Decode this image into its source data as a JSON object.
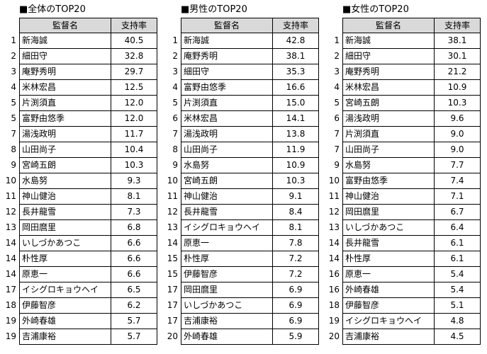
{
  "colors": {
    "header_bg": "#d9d9d9",
    "border": "#000000",
    "text": "#000000",
    "page_bg": "#ffffff"
  },
  "tables": [
    {
      "title": "■全体のTOP20",
      "columns": {
        "name": "監督名",
        "rate": "支持率"
      },
      "rows": [
        {
          "rank": "1",
          "name": "新海誠",
          "rate": "40.5"
        },
        {
          "rank": "2",
          "name": "細田守",
          "rate": "32.8"
        },
        {
          "rank": "3",
          "name": "庵野秀明",
          "rate": "29.7"
        },
        {
          "rank": "4",
          "name": "米林宏昌",
          "rate": "12.5"
        },
        {
          "rank": "5",
          "name": "片渕須直",
          "rate": "12.0"
        },
        {
          "rank": "5",
          "name": "富野由悠季",
          "rate": "12.0"
        },
        {
          "rank": "7",
          "name": "湯浅政明",
          "rate": "11.7"
        },
        {
          "rank": "8",
          "name": "山田尚子",
          "rate": "10.4"
        },
        {
          "rank": "9",
          "name": "宮崎五朗",
          "rate": "10.3"
        },
        {
          "rank": "10",
          "name": "水島努",
          "rate": "9.3"
        },
        {
          "rank": "11",
          "name": "神山健治",
          "rate": "8.1"
        },
        {
          "rank": "12",
          "name": "長井龍雪",
          "rate": "7.3"
        },
        {
          "rank": "13",
          "name": "岡田麿里",
          "rate": "6.8"
        },
        {
          "rank": "14",
          "name": "いしづかあつこ",
          "rate": "6.6"
        },
        {
          "rank": "14",
          "name": "朴性厚",
          "rate": "6.6"
        },
        {
          "rank": "14",
          "name": "原恵一",
          "rate": "6.6"
        },
        {
          "rank": "17",
          "name": "イシグロキョウヘイ",
          "rate": "6.5"
        },
        {
          "rank": "18",
          "name": "伊藤智彦",
          "rate": "6.2"
        },
        {
          "rank": "19",
          "name": "外崎春雄",
          "rate": "5.7"
        },
        {
          "rank": "19",
          "name": "吉浦康裕",
          "rate": "5.7"
        }
      ]
    },
    {
      "title": "■男性のTOP20",
      "columns": {
        "name": "監督名",
        "rate": "支持率"
      },
      "rows": [
        {
          "rank": "1",
          "name": "新海誠",
          "rate": "42.8"
        },
        {
          "rank": "2",
          "name": "庵野秀明",
          "rate": "38.1"
        },
        {
          "rank": "3",
          "name": "細田守",
          "rate": "35.3"
        },
        {
          "rank": "4",
          "name": "富野由悠季",
          "rate": "16.6"
        },
        {
          "rank": "5",
          "name": "片渕須直",
          "rate": "15.0"
        },
        {
          "rank": "6",
          "name": "米林宏昌",
          "rate": "14.1"
        },
        {
          "rank": "7",
          "name": "湯浅政明",
          "rate": "13.8"
        },
        {
          "rank": "8",
          "name": "山田尚子",
          "rate": "11.9"
        },
        {
          "rank": "9",
          "name": "水島努",
          "rate": "10.9"
        },
        {
          "rank": "10",
          "name": "宮崎五朗",
          "rate": "10.3"
        },
        {
          "rank": "11",
          "name": "神山健治",
          "rate": "9.1"
        },
        {
          "rank": "12",
          "name": "長井龍雪",
          "rate": "8.4"
        },
        {
          "rank": "13",
          "name": "イシグロキョウヘイ",
          "rate": "8.1"
        },
        {
          "rank": "14",
          "name": "原恵一",
          "rate": "7.8"
        },
        {
          "rank": "15",
          "name": "朴性厚",
          "rate": "7.2"
        },
        {
          "rank": "15",
          "name": "伊藤智彦",
          "rate": "7.2"
        },
        {
          "rank": "17",
          "name": "岡田麿里",
          "rate": "6.9"
        },
        {
          "rank": "17",
          "name": "いしづかあつこ",
          "rate": "6.9"
        },
        {
          "rank": "17",
          "name": "吉浦康裕",
          "rate": "6.9"
        },
        {
          "rank": "20",
          "name": "外崎春雄",
          "rate": "5.9"
        }
      ]
    },
    {
      "title": "■女性のTOP20",
      "columns": {
        "name": "監督名",
        "rate": "支持率"
      },
      "rows": [
        {
          "rank": "1",
          "name": "新海誠",
          "rate": "38.1"
        },
        {
          "rank": "2",
          "name": "細田守",
          "rate": "30.1"
        },
        {
          "rank": "3",
          "name": "庵野秀明",
          "rate": "21.2"
        },
        {
          "rank": "4",
          "name": "米林宏昌",
          "rate": "10.9"
        },
        {
          "rank": "5",
          "name": "宮崎五朗",
          "rate": "10.3"
        },
        {
          "rank": "6",
          "name": "湯浅政明",
          "rate": "9.6"
        },
        {
          "rank": "7",
          "name": "片渕須直",
          "rate": "9.0"
        },
        {
          "rank": "7",
          "name": "山田尚子",
          "rate": "9.0"
        },
        {
          "rank": "9",
          "name": "水島努",
          "rate": "7.7"
        },
        {
          "rank": "10",
          "name": "富野由悠季",
          "rate": "7.4"
        },
        {
          "rank": "11",
          "name": "神山健治",
          "rate": "7.1"
        },
        {
          "rank": "12",
          "name": "岡田麿里",
          "rate": "6.7"
        },
        {
          "rank": "13",
          "name": "いしづかあつこ",
          "rate": "6.4"
        },
        {
          "rank": "14",
          "name": "長井龍雪",
          "rate": "6.1"
        },
        {
          "rank": "14",
          "name": "朴性厚",
          "rate": "6.1"
        },
        {
          "rank": "16",
          "name": "原恵一",
          "rate": "5.4"
        },
        {
          "rank": "16",
          "name": "外崎春雄",
          "rate": "5.4"
        },
        {
          "rank": "18",
          "name": "伊藤智彦",
          "rate": "5.1"
        },
        {
          "rank": "19",
          "name": "イシグロキョウヘイ",
          "rate": "4.8"
        },
        {
          "rank": "20",
          "name": "吉浦康裕",
          "rate": "4.5"
        }
      ]
    }
  ]
}
